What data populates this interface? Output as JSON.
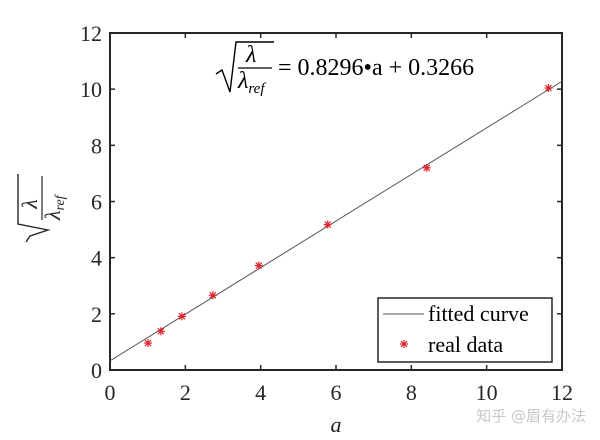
{
  "chart_data": {
    "type": "scatter",
    "title": "",
    "xlabel": "a",
    "ylabel": "sqrt(λ/λ_ref)",
    "xlim": [
      0,
      12
    ],
    "ylim": [
      0,
      12
    ],
    "xticks": [
      0,
      2,
      4,
      6,
      8,
      10,
      12
    ],
    "yticks": [
      0,
      2,
      4,
      6,
      8,
      10,
      12
    ],
    "grid": false,
    "legend_position": "lower right",
    "annotation": {
      "equation_lhs_num": "λ",
      "equation_lhs_den": "λ",
      "equation_lhs_den_sub": "ref",
      "equation_rhs": "= 0.8296•a + 0.3266"
    },
    "series": [
      {
        "name": "fitted curve",
        "kind": "line",
        "color": "#555555",
        "slope": 0.8296,
        "intercept": 0.3266,
        "x": [
          0,
          12
        ]
      },
      {
        "name": "real data",
        "kind": "marker",
        "marker": "*",
        "color": "#e0202a",
        "x": [
          1.01,
          1.35,
          1.91,
          2.73,
          3.95,
          5.78,
          8.41,
          11.64
        ],
        "y": [
          0.96,
          1.38,
          1.91,
          2.66,
          3.72,
          5.18,
          7.2,
          10.04
        ]
      }
    ]
  },
  "legend": {
    "items": [
      {
        "label": "fitted curve"
      },
      {
        "label": "real data"
      }
    ]
  },
  "axes": {
    "xlabel": "a",
    "ylabel_num": "λ",
    "ylabel_den": "λ",
    "ylabel_den_sub": "ref"
  },
  "watermark": "知乎 @眉有办法"
}
